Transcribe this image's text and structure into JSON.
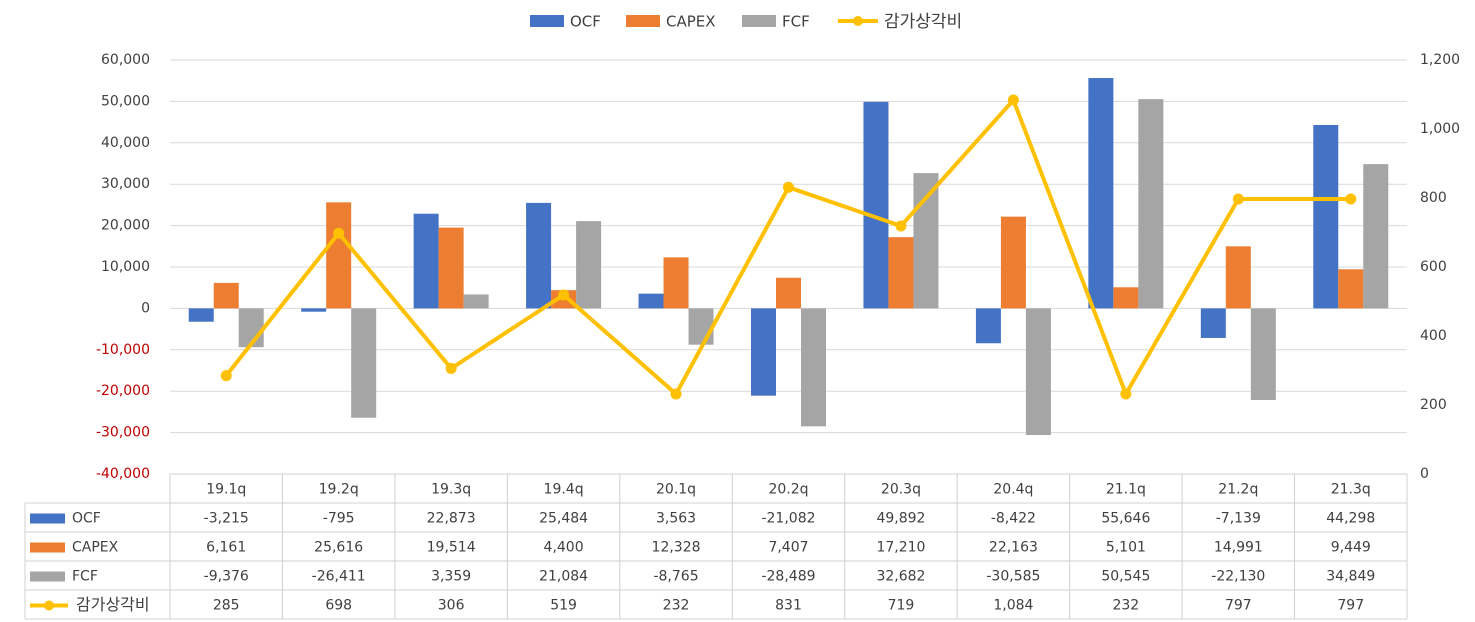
{
  "chart_data": {
    "type": "bar",
    "categories": [
      "19.1q",
      "19.2q",
      "19.3q",
      "19.4q",
      "20.1q",
      "20.2q",
      "20.3q",
      "20.4q",
      "21.1q",
      "21.2q",
      "21.3q"
    ],
    "series": [
      {
        "name": "OCF",
        "type": "bar",
        "axis": "left",
        "color": "#4472c4",
        "values": [
          -3215,
          -795,
          22873,
          25484,
          3563,
          -21082,
          49892,
          -8422,
          55646,
          -7139,
          44298
        ],
        "labels": [
          "-3,215",
          "-795",
          "22,873",
          "25,484",
          "3,563",
          "-21,082",
          "49,892",
          "-8,422",
          "55,646",
          "-7,139",
          "44,298"
        ]
      },
      {
        "name": "CAPEX",
        "type": "bar",
        "axis": "left",
        "color": "#ed7d31",
        "values": [
          6161,
          25616,
          19514,
          4400,
          12328,
          7407,
          17210,
          22163,
          5101,
          14991,
          9449
        ],
        "labels": [
          "6,161",
          "25,616",
          "19,514",
          "4,400",
          "12,328",
          "7,407",
          "17,210",
          "22,163",
          "5,101",
          "14,991",
          "9,449"
        ]
      },
      {
        "name": "FCF",
        "type": "bar",
        "axis": "left",
        "color": "#a5a5a5",
        "values": [
          -9376,
          -26411,
          3359,
          21084,
          -8765,
          -28489,
          32682,
          -30585,
          50545,
          -22130,
          34849
        ],
        "labels": [
          "-9,376",
          "-26,411",
          "3,359",
          "21,084",
          "-8,765",
          "-28,489",
          "32,682",
          "-30,585",
          "50,545",
          "-22,130",
          "34,849"
        ]
      },
      {
        "name": "감가상각비",
        "type": "line",
        "axis": "right",
        "color": "#ffc000",
        "values": [
          285,
          698,
          306,
          519,
          232,
          831,
          719,
          1084,
          232,
          797,
          797
        ],
        "labels": [
          "285",
          "698",
          "306",
          "519",
          "232",
          "831",
          "719",
          "1,084",
          "232",
          "797",
          "797"
        ]
      }
    ],
    "y_left": {
      "min": -40000,
      "max": 60000,
      "step": 10000,
      "tick_labels": [
        "-40,000",
        "-30,000",
        "-20,000",
        "-10,000",
        "0",
        "10,000",
        "20,000",
        "30,000",
        "40,000",
        "50,000",
        "60,000"
      ],
      "negative_color": "#c00000"
    },
    "y_right": {
      "min": 0,
      "max": 1200,
      "step": 200,
      "tick_labels": [
        "0",
        "200",
        "400",
        "600",
        "800",
        "1,000",
        "1,200"
      ]
    },
    "legend_position": "top-center",
    "grid": true,
    "data_table": true
  }
}
